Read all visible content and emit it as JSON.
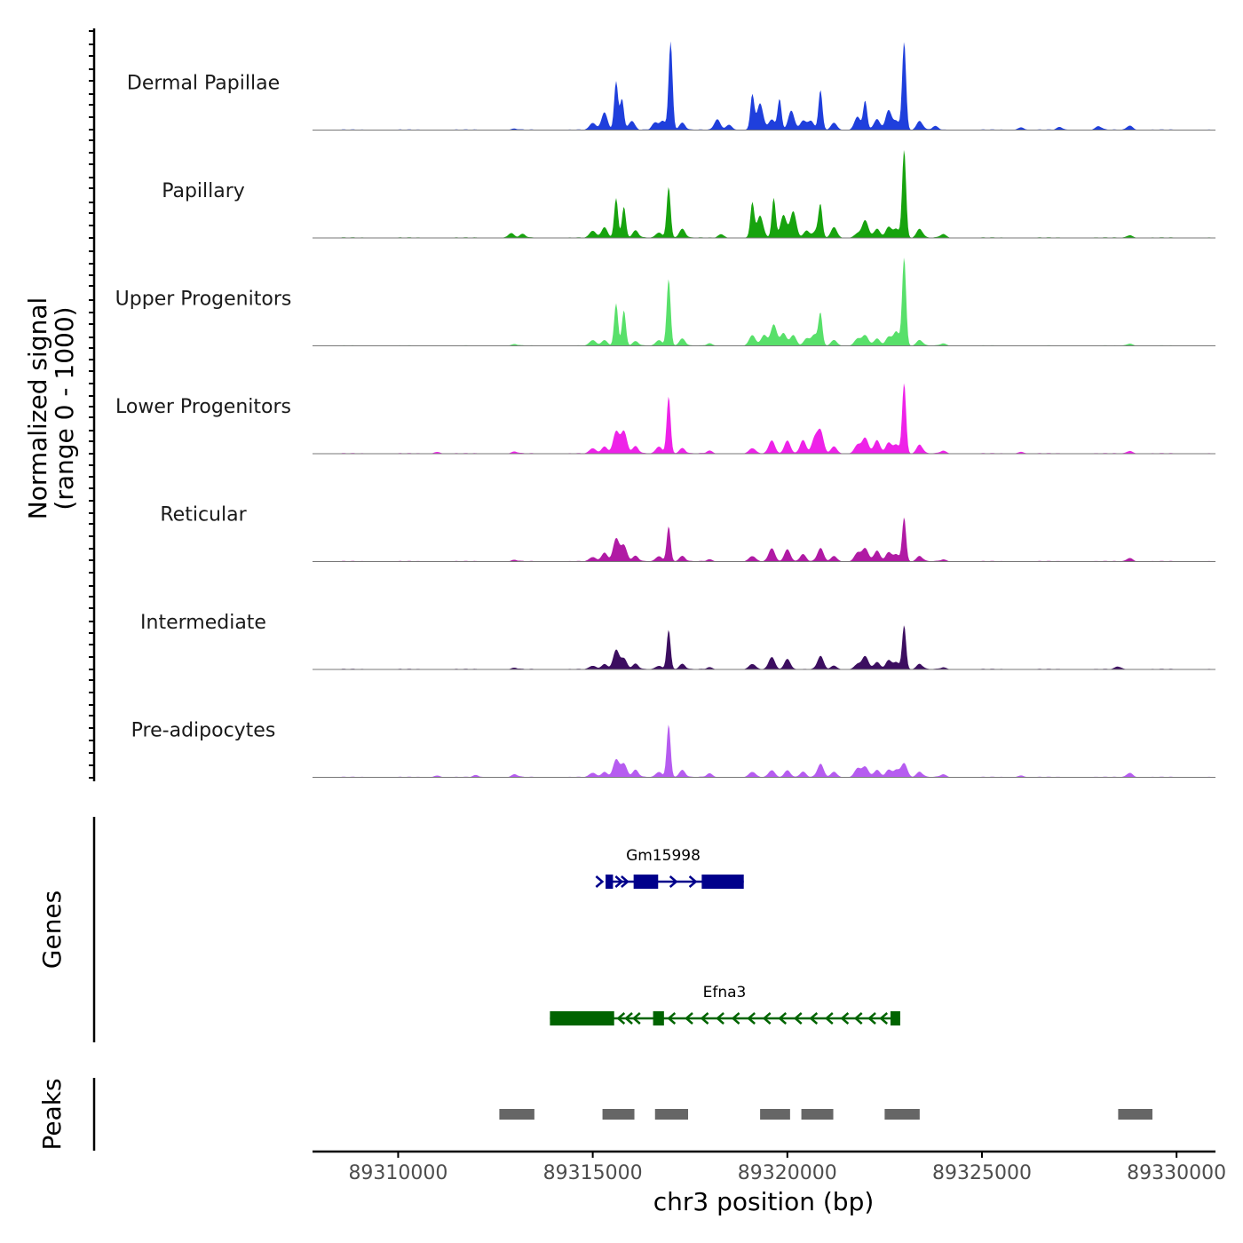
{
  "chart_data": {
    "type": "area",
    "chromosome": "chr3",
    "xlim": [
      89307800,
      89331000
    ],
    "xlabel": "chr3 position (bp)",
    "ylabel_line1": "Normalized signal",
    "ylabel_line2": "(range 0 - 1000)",
    "x_ticks": [
      89310000,
      89315000,
      89320000,
      89325000,
      89330000
    ],
    "x_tick_labels": [
      "89310000",
      "89315000",
      "89320000",
      "89325000",
      "89330000"
    ],
    "signal_tracks": [
      {
        "name": "Dermal Papillae",
        "color": "#1f3fdc",
        "peaks": [
          [
            89313000,
            1.2
          ],
          [
            89315000,
            8
          ],
          [
            89315300,
            20
          ],
          [
            89315600,
            55
          ],
          [
            89315750,
            35
          ],
          [
            89316000,
            10
          ],
          [
            89316600,
            8
          ],
          [
            89316800,
            10
          ],
          [
            89317000,
            100
          ],
          [
            89317300,
            8
          ],
          [
            89318200,
            12
          ],
          [
            89318500,
            6
          ],
          [
            89319100,
            40
          ],
          [
            89319300,
            30
          ],
          [
            89319600,
            12
          ],
          [
            89319800,
            35
          ],
          [
            89320100,
            22
          ],
          [
            89320400,
            10
          ],
          [
            89320600,
            10
          ],
          [
            89320850,
            45
          ],
          [
            89321200,
            8
          ],
          [
            89321800,
            15
          ],
          [
            89322000,
            33
          ],
          [
            89322300,
            12
          ],
          [
            89322600,
            22
          ],
          [
            89322800,
            10
          ],
          [
            89323000,
            100
          ],
          [
            89323400,
            10
          ],
          [
            89323800,
            4
          ],
          [
            89326000,
            3
          ],
          [
            89327000,
            3
          ],
          [
            89328000,
            4
          ],
          [
            89328800,
            5
          ]
        ]
      },
      {
        "name": "Papillary",
        "color": "#17a30e",
        "peaks": [
          [
            89312900,
            5
          ],
          [
            89313200,
            4
          ],
          [
            89315000,
            8
          ],
          [
            89315300,
            12
          ],
          [
            89315600,
            45
          ],
          [
            89315800,
            35
          ],
          [
            89316100,
            8
          ],
          [
            89316700,
            6
          ],
          [
            89316950,
            58
          ],
          [
            89317300,
            10
          ],
          [
            89318300,
            4
          ],
          [
            89319100,
            40
          ],
          [
            89319300,
            25
          ],
          [
            89319650,
            45
          ],
          [
            89319900,
            26
          ],
          [
            89320150,
            30
          ],
          [
            89320500,
            8
          ],
          [
            89320750,
            8
          ],
          [
            89320850,
            35
          ],
          [
            89321200,
            12
          ],
          [
            89321800,
            5
          ],
          [
            89322000,
            20
          ],
          [
            89322300,
            10
          ],
          [
            89322600,
            12
          ],
          [
            89322800,
            10
          ],
          [
            89323000,
            100
          ],
          [
            89323400,
            10
          ],
          [
            89324000,
            4
          ],
          [
            89328800,
            3
          ]
        ]
      },
      {
        "name": "Upper Progenitors",
        "color": "#58e06a",
        "peaks": [
          [
            89313000,
            2
          ],
          [
            89315000,
            8
          ],
          [
            89315300,
            8
          ],
          [
            89315600,
            60
          ],
          [
            89315800,
            50
          ],
          [
            89316100,
            6
          ],
          [
            89316700,
            8
          ],
          [
            89316950,
            95
          ],
          [
            89317300,
            10
          ],
          [
            89318000,
            3
          ],
          [
            89319100,
            15
          ],
          [
            89319400,
            15
          ],
          [
            89319650,
            30
          ],
          [
            89319900,
            18
          ],
          [
            89320150,
            15
          ],
          [
            89320500,
            10
          ],
          [
            89320700,
            15
          ],
          [
            89320850,
            45
          ],
          [
            89321200,
            8
          ],
          [
            89321800,
            10
          ],
          [
            89322000,
            15
          ],
          [
            89322300,
            10
          ],
          [
            89322600,
            12
          ],
          [
            89322800,
            20
          ],
          [
            89323000,
            125
          ],
          [
            89323400,
            8
          ],
          [
            89324000,
            3
          ],
          [
            89328800,
            3
          ]
        ]
      },
      {
        "name": "Lower Progenitors",
        "color": "#ee22e8",
        "peaks": [
          [
            89311000,
            2
          ],
          [
            89313000,
            2
          ],
          [
            89315000,
            6
          ],
          [
            89315300,
            8
          ],
          [
            89315600,
            25
          ],
          [
            89315800,
            25
          ],
          [
            89316100,
            8
          ],
          [
            89316700,
            8
          ],
          [
            89316950,
            65
          ],
          [
            89317300,
            6
          ],
          [
            89318000,
            3
          ],
          [
            89319100,
            6
          ],
          [
            89319600,
            15
          ],
          [
            89320000,
            15
          ],
          [
            89320400,
            15
          ],
          [
            89320700,
            16
          ],
          [
            89320850,
            25
          ],
          [
            89321200,
            8
          ],
          [
            89321800,
            10
          ],
          [
            89322000,
            18
          ],
          [
            89322300,
            15
          ],
          [
            89322600,
            12
          ],
          [
            89322800,
            10
          ],
          [
            89323000,
            80
          ],
          [
            89323400,
            10
          ],
          [
            89324000,
            3
          ],
          [
            89326000,
            2
          ],
          [
            89328800,
            3
          ]
        ]
      },
      {
        "name": "Reticular",
        "color": "#b01aa4",
        "peaks": [
          [
            89313000,
            1.5
          ],
          [
            89315000,
            5
          ],
          [
            89315300,
            10
          ],
          [
            89315600,
            26
          ],
          [
            89315800,
            18
          ],
          [
            89316100,
            6
          ],
          [
            89316700,
            6
          ],
          [
            89316950,
            40
          ],
          [
            89317300,
            6
          ],
          [
            89318000,
            2
          ],
          [
            89319100,
            6
          ],
          [
            89319600,
            15
          ],
          [
            89320000,
            14
          ],
          [
            89320400,
            8
          ],
          [
            89320850,
            15
          ],
          [
            89321200,
            6
          ],
          [
            89321800,
            10
          ],
          [
            89322000,
            15
          ],
          [
            89322300,
            12
          ],
          [
            89322600,
            10
          ],
          [
            89322800,
            8
          ],
          [
            89323000,
            50
          ],
          [
            89323400,
            6
          ],
          [
            89324000,
            2
          ],
          [
            89328800,
            4
          ]
        ]
      },
      {
        "name": "Intermediate",
        "color": "#3c0e60",
        "peaks": [
          [
            89313000,
            1.5
          ],
          [
            89315000,
            4
          ],
          [
            89315300,
            6
          ],
          [
            89315600,
            22
          ],
          [
            89315800,
            12
          ],
          [
            89316100,
            6
          ],
          [
            89316700,
            4
          ],
          [
            89316950,
            45
          ],
          [
            89317300,
            6
          ],
          [
            89318000,
            2
          ],
          [
            89319100,
            6
          ],
          [
            89319600,
            14
          ],
          [
            89320000,
            12
          ],
          [
            89320850,
            15
          ],
          [
            89321200,
            4
          ],
          [
            89321800,
            6
          ],
          [
            89322000,
            15
          ],
          [
            89322300,
            8
          ],
          [
            89322600,
            10
          ],
          [
            89322800,
            8
          ],
          [
            89323000,
            50
          ],
          [
            89323400,
            6
          ],
          [
            89324000,
            2
          ],
          [
            89328500,
            3
          ]
        ]
      },
      {
        "name": "Pre-adipocytes",
        "color": "#b65cf0",
        "peaks": [
          [
            89311000,
            2
          ],
          [
            89312000,
            2
          ],
          [
            89313000,
            3
          ],
          [
            89315000,
            5
          ],
          [
            89315300,
            6
          ],
          [
            89315600,
            20
          ],
          [
            89315800,
            15
          ],
          [
            89316100,
            8
          ],
          [
            89316700,
            6
          ],
          [
            89316950,
            60
          ],
          [
            89317300,
            8
          ],
          [
            89318000,
            4
          ],
          [
            89319100,
            6
          ],
          [
            89319600,
            8
          ],
          [
            89320000,
            8
          ],
          [
            89320400,
            6
          ],
          [
            89320850,
            15
          ],
          [
            89321200,
            6
          ],
          [
            89321800,
            10
          ],
          [
            89322000,
            12
          ],
          [
            89322300,
            8
          ],
          [
            89322600,
            8
          ],
          [
            89322800,
            8
          ],
          [
            89323000,
            16
          ],
          [
            89323400,
            6
          ],
          [
            89324000,
            3
          ],
          [
            89326000,
            2
          ],
          [
            89328800,
            5
          ]
        ]
      }
    ],
    "genes": [
      {
        "name": "Gm15998",
        "strand": "+",
        "color": "#00008b",
        "start": 89315330,
        "end": 89318880,
        "exons": [
          [
            89315330,
            89315520,
            "thick"
          ],
          [
            89316050,
            89316680,
            "thick"
          ],
          [
            89317800,
            89318880,
            "thick"
          ]
        ],
        "arrows": [
          89315200,
          89315700,
          89315850,
          89317100,
          89317600
        ]
      },
      {
        "name": "Efna3",
        "strand": "-",
        "color": "#006400",
        "start": 89313900,
        "end": 89322900,
        "exons": [
          [
            89313900,
            89315550,
            "thick"
          ],
          [
            89316550,
            89316830,
            "thick"
          ],
          [
            89322650,
            89322900,
            "thick"
          ]
        ],
        "arrows": [
          89315700,
          89315900,
          89316100,
          89317000,
          89317450,
          89317850,
          89318250,
          89318650,
          89319050,
          89319450,
          89319850,
          89320250,
          89320650,
          89321050,
          89321450,
          89321800,
          89322150,
          89322450
        ]
      }
    ],
    "peaks": [
      [
        89312600,
        89313500
      ],
      [
        89315250,
        89316070
      ],
      [
        89316600,
        89317450
      ],
      [
        89319300,
        89320070
      ],
      [
        89320360,
        89321180
      ],
      [
        89322500,
        89323400
      ],
      [
        89328500,
        89329380
      ]
    ],
    "panel_titles": {
      "genes": "Genes",
      "peaks": "Peaks"
    }
  }
}
